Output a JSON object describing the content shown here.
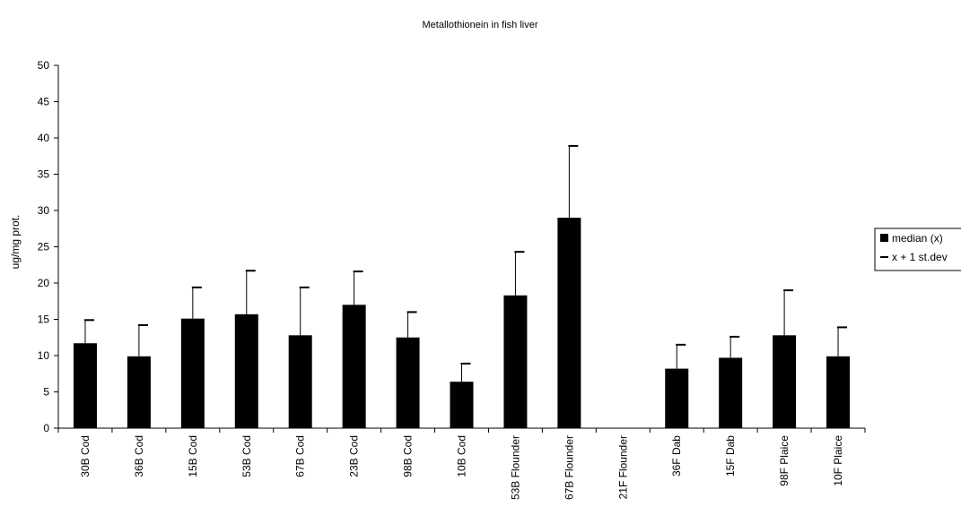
{
  "chart_data": {
    "type": "bar",
    "title": "Metallothionein in fish liver",
    "xlabel": "",
    "ylabel": "ug/mg prot.",
    "ylim": [
      0,
      50
    ],
    "yticks": [
      0,
      5,
      10,
      15,
      20,
      25,
      30,
      35,
      40,
      45,
      50
    ],
    "categories": [
      "30B Cod",
      "36B Cod",
      "15B Cod",
      "53B Cod",
      "67B Cod",
      "23B Cod",
      "98B Cod",
      "10B Cod",
      "53B Flounder",
      "67B Flounder",
      "21F Flounder",
      "36F Dab",
      "15F Dab",
      "98F Plaice",
      "10F Plaice"
    ],
    "series": [
      {
        "name": "median (x)",
        "values": [
          11.7,
          9.9,
          15.1,
          15.7,
          12.8,
          17.0,
          12.5,
          6.4,
          18.3,
          29.0,
          null,
          8.2,
          9.7,
          12.8,
          9.9
        ]
      },
      {
        "name": "x + 1 st.dev",
        "values": [
          14.9,
          14.2,
          19.4,
          21.7,
          19.4,
          21.6,
          16.0,
          8.9,
          24.3,
          38.9,
          null,
          11.5,
          12.6,
          19.0,
          13.9
        ]
      }
    ],
    "legend_position": "right",
    "grid": false,
    "colors": {
      "bar": "#000000",
      "axis": "#000000",
      "background": "#ffffff"
    }
  }
}
